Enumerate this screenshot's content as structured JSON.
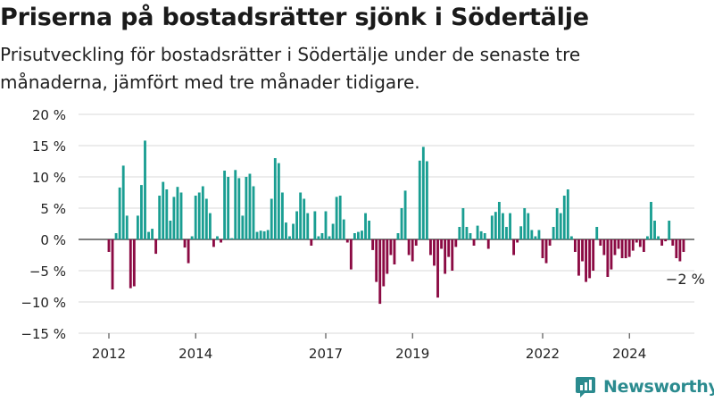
{
  "title": "Priserna på bostadsrätter sjönk i Södertälje",
  "subtitle": "Prisutveckling för bostadsrätter i Södertälje under de senaste tre månaderna, jämfört med tre månader tidigare.",
  "brand": "Newsworthy",
  "colors": {
    "positive": "#1a9e92",
    "negative": "#8b0a43",
    "grid": "#d9d9d9",
    "text": "#222222"
  },
  "chart_data": {
    "type": "bar",
    "title": "Priserna på bostadsrätter sjönk i Södertälje",
    "xlabel": "",
    "ylabel": "",
    "ylim": [
      -15,
      20
    ],
    "y_ticks": [
      20,
      15,
      10,
      5,
      0,
      -5,
      -10,
      -15
    ],
    "y_tick_labels": [
      "20 %",
      "15 %",
      "10 %",
      "5 %",
      "0 %",
      "−5 %",
      "−10 %",
      "−15 %"
    ],
    "x_tick_labels": [
      "2012",
      "2014",
      "2017",
      "2019",
      "2022",
      "2024"
    ],
    "x_tick_values": [
      2012.0,
      2014.0,
      2017.0,
      2019.0,
      2022.0,
      2024.0
    ],
    "annotation": "−2 %",
    "start": 2012.0,
    "step_years": 0.08333,
    "grid": true,
    "values": [
      -2,
      -8,
      1,
      8.3,
      11.8,
      3.8,
      -7.8,
      -7.5,
      3.8,
      8.7,
      15.8,
      1.2,
      1.7,
      -2.3,
      7,
      9.2,
      8,
      3,
      6.8,
      8.4,
      7.5,
      -1.3,
      -3.8,
      0.5,
      7,
      7.5,
      8.5,
      6.5,
      4.2,
      -1.2,
      0.5,
      -0.5,
      11,
      10,
      0.2,
      11.1,
      9.8,
      3.8,
      10,
      10.5,
      8.5,
      1.2,
      1.4,
      1.3,
      1.5,
      6.5,
      13,
      12.2,
      7.5,
      2.7,
      0.5,
      2.5,
      4.5,
      7.5,
      6.5,
      4.2,
      -1,
      4.5,
      0.5,
      1,
      4.5,
      0.5,
      2.5,
      6.8,
      7,
      3.2,
      -0.5,
      -4.8,
      1,
      1.2,
      1.4,
      4.2,
      3,
      -1.7,
      -6.8,
      -10.3,
      -7.5,
      -5.5,
      -2.5,
      -4,
      1,
      5,
      7.8,
      -2.5,
      -3.5,
      -1,
      12.6,
      14.8,
      12.5,
      -2.5,
      -4.2,
      -9.3,
      -1.5,
      -5.5,
      -2.8,
      -5,
      -1.2,
      2,
      5,
      2,
      1,
      -1,
      2.2,
      1.3,
      1,
      -1.5,
      3.8,
      4.4,
      6,
      4.2,
      2,
      4.2,
      -2.5,
      -0.5,
      2.1,
      5,
      4.2,
      1.5,
      0.5,
      1.5,
      -3,
      -3.8,
      -1,
      2,
      5,
      4.2,
      7,
      8,
      0.5,
      -2,
      -5.8,
      -3.5,
      -6.8,
      -6.2,
      -5,
      2,
      -1,
      -2.5,
      -6,
      -4.8,
      -2.5,
      -1.5,
      -3,
      -3,
      -2.8,
      -1.8,
      -0.5,
      -1.2,
      -2,
      0.5,
      6,
      3,
      0.5,
      -1,
      -0.3,
      3,
      -1,
      -3,
      -3.5,
      -2
    ]
  }
}
